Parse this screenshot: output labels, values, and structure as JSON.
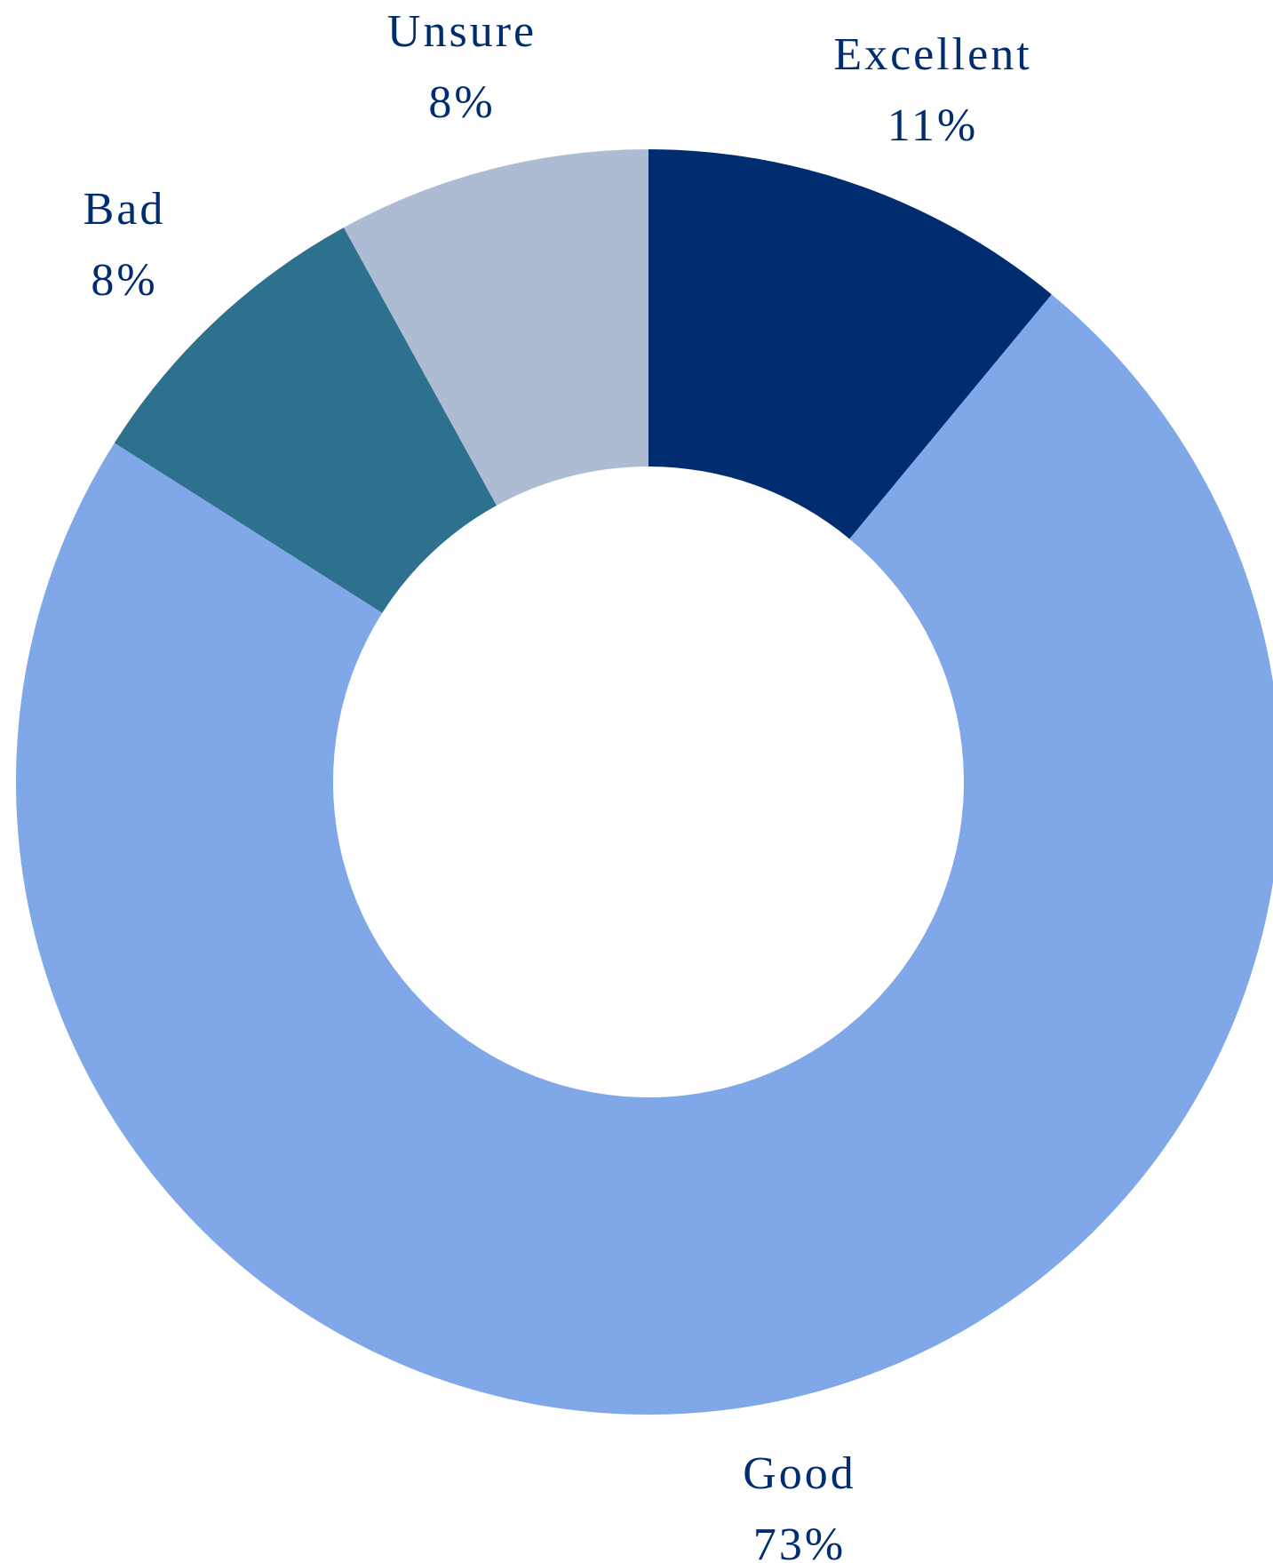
{
  "chart_data": {
    "type": "pie",
    "style": "donut",
    "title": "",
    "label_color": "#002C70",
    "slices": [
      {
        "label": "Excellent",
        "value": 11,
        "value_label": "11%",
        "color": "#002C70"
      },
      {
        "label": "Good",
        "value": 73,
        "value_label": "73%",
        "color": "#80A8E9"
      },
      {
        "label": "Bad",
        "value": 8,
        "value_label": "8%",
        "color": "#2E718E"
      },
      {
        "label": "Unsure",
        "value": 8,
        "value_label": "8%",
        "color": "#AEBCD3"
      }
    ]
  }
}
